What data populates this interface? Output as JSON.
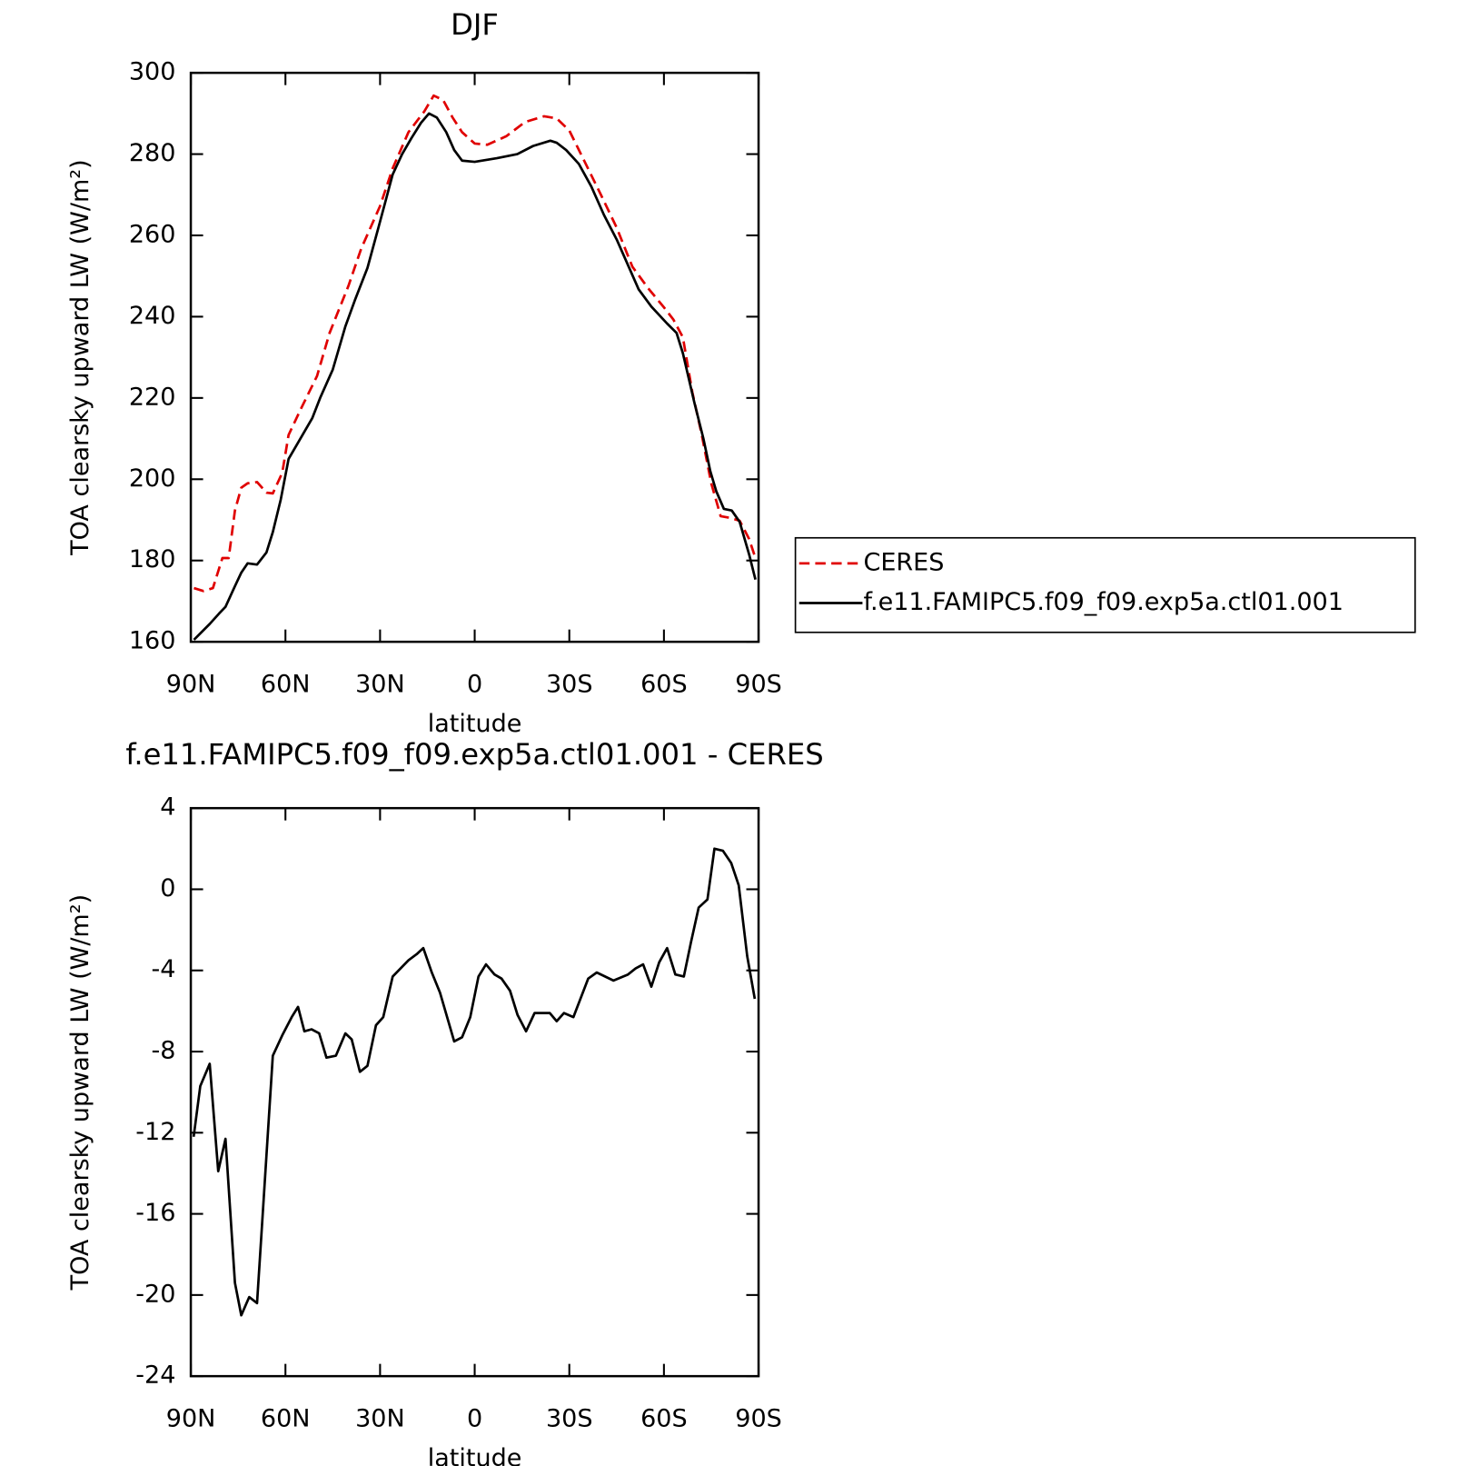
{
  "chart_data": [
    {
      "type": "line",
      "title": "DJF",
      "xlabel": "latitude",
      "ylabel": "TOA clearsky upward LW (W/m²)",
      "xlim": [
        90,
        -90
      ],
      "ylim": [
        160,
        300
      ],
      "xticks": [
        {
          "value": 90,
          "label": "90N"
        },
        {
          "value": 60,
          "label": "60N"
        },
        {
          "value": 30,
          "label": "30N"
        },
        0,
        {
          "value": -30,
          "label": "30S"
        },
        {
          "value": -60,
          "label": "60S"
        },
        {
          "value": -90,
          "label": "90S"
        }
      ],
      "yticks": [
        160,
        180,
        200,
        220,
        240,
        260,
        280,
        300
      ],
      "legend": true,
      "legend_position": "right",
      "series": [
        {
          "name": "CERES",
          "color": "#e00000",
          "dash": "dashed",
          "x": [
            89,
            86,
            83,
            80,
            78,
            76,
            74,
            72,
            69,
            66,
            64,
            61,
            59,
            55,
            50,
            46,
            40,
            36,
            30,
            26,
            21,
            16,
            13,
            10,
            7,
            4,
            0,
            -4,
            -10,
            -16,
            -22,
            -26,
            -30,
            -35,
            -40,
            -45,
            -50,
            -55,
            -60,
            -63,
            -66,
            -69,
            -72,
            -75,
            -78,
            -81,
            -84,
            -87,
            -89
          ],
          "values": [
            173.2,
            172.5,
            173.2,
            180.6,
            180.6,
            192.3,
            197.9,
            199,
            199.3,
            196.7,
            196.5,
            201.6,
            210.9,
            217.5,
            225.4,
            236,
            247.6,
            256.7,
            267.2,
            276.5,
            285.4,
            290.5,
            294.4,
            293.3,
            289,
            285.4,
            282.6,
            282.3,
            284.4,
            287.9,
            289.3,
            288.8,
            285.8,
            277.9,
            270,
            261.9,
            252.3,
            247,
            242.3,
            239.3,
            234.9,
            221.4,
            210.9,
            199,
            190.9,
            190.5,
            189.8,
            185.3,
            180.6
          ]
        },
        {
          "name": "f.e11.FAMIPC5.f09_f09.exp5a.ctl01.001",
          "color": "#000000",
          "dash": "solid",
          "x": [
            89,
            84,
            81,
            79,
            76,
            74,
            72,
            69,
            66,
            64,
            61.5,
            59,
            56,
            51.5,
            49,
            45,
            41,
            38,
            34,
            30.5,
            26,
            23,
            20,
            17,
            14.5,
            12,
            9,
            6.5,
            4,
            0,
            -7,
            -13.5,
            -18.5,
            -24,
            -26,
            -29,
            -33,
            -37,
            -41,
            -45,
            -49,
            -52,
            -56,
            -61,
            -64,
            -66,
            -69.6,
            -72.5,
            -74.7,
            -76.6,
            -79,
            -81.5,
            -84,
            -87,
            -89
          ],
          "values": [
            160.5,
            164.4,
            167,
            168.6,
            173.7,
            177,
            179.3,
            179,
            182,
            187,
            195,
            205,
            209,
            215,
            220,
            227,
            237.6,
            244,
            252,
            262,
            275,
            280,
            284,
            287.7,
            290,
            289,
            285.4,
            281,
            278.4,
            278.1,
            279,
            280,
            282,
            283.3,
            282.8,
            281,
            277.6,
            272,
            265,
            259,
            252,
            246.7,
            242.5,
            238.3,
            236,
            231,
            219,
            210,
            202,
            197,
            192.7,
            192.3,
            189.5,
            181.5,
            175.3
          ]
        }
      ]
    },
    {
      "type": "line",
      "title": "f.e11.FAMIPC5.f09_f09.exp5a.ctl01.001 - CERES",
      "xlabel": "latitude",
      "ylabel": "TOA clearsky upward LW (W/m²)",
      "xlim": [
        90,
        -90
      ],
      "ylim": [
        -24,
        4
      ],
      "xticks": [
        {
          "value": 90,
          "label": "90N"
        },
        {
          "value": 60,
          "label": "60N"
        },
        {
          "value": 30,
          "label": "30N"
        },
        0,
        {
          "value": -30,
          "label": "30S"
        },
        {
          "value": -60,
          "label": "60S"
        },
        {
          "value": -90,
          "label": "90S"
        }
      ],
      "yticks": [
        -24,
        -20,
        -16,
        -12,
        -8,
        -4,
        0,
        4
      ],
      "legend": false,
      "series": [
        {
          "color": "#000000",
          "dash": "solid",
          "x": [
            89.1,
            87,
            84,
            81.3,
            79,
            76,
            74,
            71.5,
            69,
            64,
            61,
            58,
            56,
            54,
            51.7,
            49.3,
            47,
            44,
            41,
            39,
            36.4,
            34,
            31.3,
            29,
            26,
            21,
            18.4,
            16.3,
            13.6,
            11,
            6.5,
            4,
            1.4,
            -1.2,
            -3.6,
            -6.3,
            -8.5,
            -11.2,
            -13.6,
            -16.3,
            -19,
            -23.8,
            -26,
            -28.3,
            -31.3,
            -36,
            -38.7,
            -44,
            -48.6,
            -51,
            -53.4,
            -56,
            -58.5,
            -61,
            -63.6,
            -66.3,
            -68.6,
            -71,
            -73.8,
            -76,
            -78.7,
            -81.3,
            -83.7,
            -86.4,
            -88.8
          ],
          "values": [
            -12.2,
            -9.7,
            -8.6,
            -13.9,
            -12.3,
            -19.4,
            -21,
            -20.1,
            -20.4,
            -8.2,
            -7.2,
            -6.3,
            -5.8,
            -7,
            -6.9,
            -7.1,
            -8.3,
            -8.2,
            -7.1,
            -7.4,
            -9,
            -8.7,
            -6.7,
            -6.3,
            -4.3,
            -3.5,
            -3.2,
            -2.9,
            -4.1,
            -5.1,
            -7.5,
            -7.3,
            -6.3,
            -4.3,
            -3.7,
            -4.2,
            -4.4,
            -5,
            -6.2,
            -7,
            -6.1,
            -6.1,
            -6.5,
            -6.1,
            -6.3,
            -4.4,
            -4.1,
            -4.5,
            -4.2,
            -3.9,
            -3.7,
            -4.8,
            -3.6,
            -2.9,
            -4.2,
            -4.3,
            -2.6,
            -0.9,
            -0.5,
            2,
            1.9,
            1.3,
            0.2,
            -3.3,
            -5.4
          ]
        }
      ]
    }
  ]
}
